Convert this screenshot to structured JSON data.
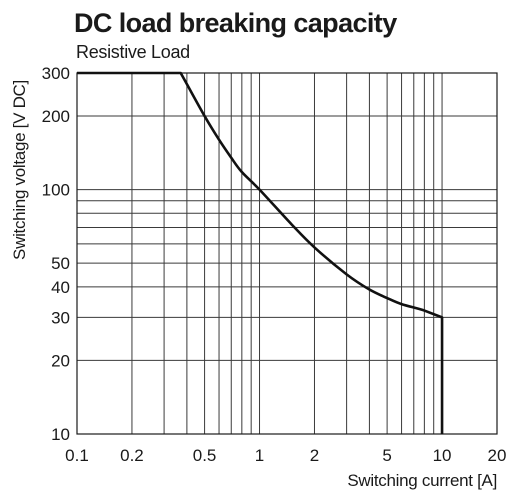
{
  "chart_data": {
    "type": "line",
    "title": "DC load breaking capacity",
    "subtitle": "Resistive Load",
    "xlabel": "Switching current [A]",
    "ylabel": "Switching voltage [V DC]",
    "xscale": "log",
    "yscale": "log",
    "xlim": [
      0.1,
      20
    ],
    "ylim": [
      10,
      300
    ],
    "x_tick_labels": [
      "0.1",
      "0.2",
      "0.5",
      "1",
      "2",
      "5",
      "10",
      "20"
    ],
    "x_ticks": [
      0.1,
      0.2,
      0.5,
      1,
      2,
      5,
      10,
      20
    ],
    "y_tick_labels": [
      "10",
      "20",
      "30",
      "40",
      "50",
      "100",
      "200",
      "300"
    ],
    "y_ticks": [
      10,
      20,
      30,
      40,
      50,
      100,
      200,
      300
    ],
    "x_grid": [
      0.1,
      0.2,
      0.3,
      0.4,
      0.5,
      0.6,
      0.7,
      0.8,
      0.9,
      1,
      2,
      3,
      4,
      5,
      6,
      7,
      8,
      9,
      10
    ],
    "y_grid": [
      10,
      20,
      30,
      40,
      50,
      60,
      70,
      80,
      90,
      100,
      200,
      300
    ],
    "grid": true,
    "series": [
      {
        "x": [
          0.1,
          0.2,
          0.3,
          0.37,
          0.4,
          0.5,
          0.6,
          0.7,
          0.8,
          1.0,
          1.5,
          2.0,
          3.0,
          4.0,
          5.0,
          6.0,
          8.0,
          10.0,
          10.0
        ],
        "y": [
          300,
          300,
          300,
          300,
          270,
          200,
          160,
          135,
          118,
          100,
          72,
          58,
          45,
          39,
          36,
          34,
          32,
          30,
          10
        ]
      }
    ]
  }
}
